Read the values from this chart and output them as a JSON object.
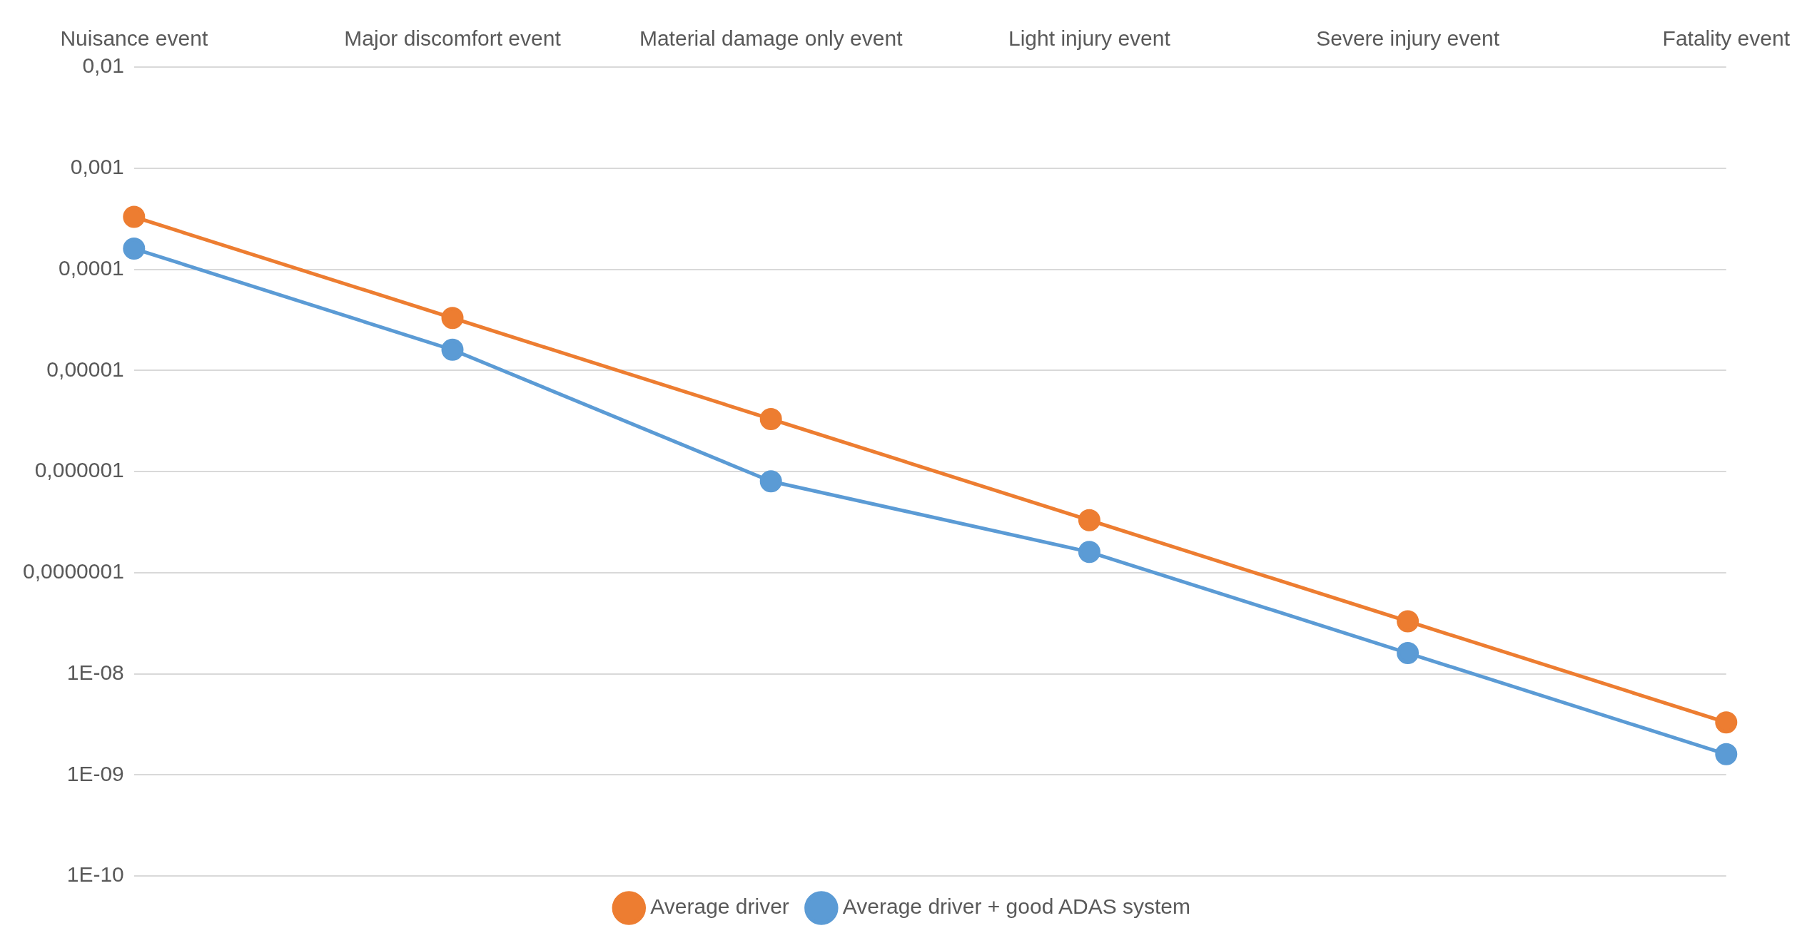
{
  "chart_data": {
    "type": "line",
    "categories": [
      "Nuisance event",
      "Major discomfort event",
      "Material damage only event",
      "Light injury event",
      "Severe injury event",
      "Fatality event"
    ],
    "series": [
      {
        "name": "Average driver",
        "color": "#ed7d31",
        "values": [
          0.00033,
          3.3e-05,
          3.3e-06,
          3.3e-07,
          3.3e-08,
          3.3e-09
        ]
      },
      {
        "name": "Average driver + good ADAS system",
        "color": "#5b9bd5",
        "values": [
          0.00016,
          1.6e-05,
          8e-07,
          1.6e-07,
          1.6e-08,
          1.6e-09
        ]
      }
    ],
    "log": "y",
    "ylim": [
      1e-10,
      0.01
    ],
    "yticks": [
      {
        "value": 0.01,
        "label": "0,01"
      },
      {
        "value": 0.001,
        "label": "0,001"
      },
      {
        "value": 0.0001,
        "label": "0,0001"
      },
      {
        "value": 1e-05,
        "label": "0,00001"
      },
      {
        "value": 1e-06,
        "label": "0,000001"
      },
      {
        "value": 1e-07,
        "label": "0,0000001"
      },
      {
        "value": 1e-08,
        "label": "1E-08"
      },
      {
        "value": 1e-09,
        "label": "1E-09"
      },
      {
        "value": 1e-10,
        "label": "1E-10"
      }
    ],
    "grid": "y",
    "legend": "bottom",
    "marker": "circle",
    "line_style": "solid"
  }
}
